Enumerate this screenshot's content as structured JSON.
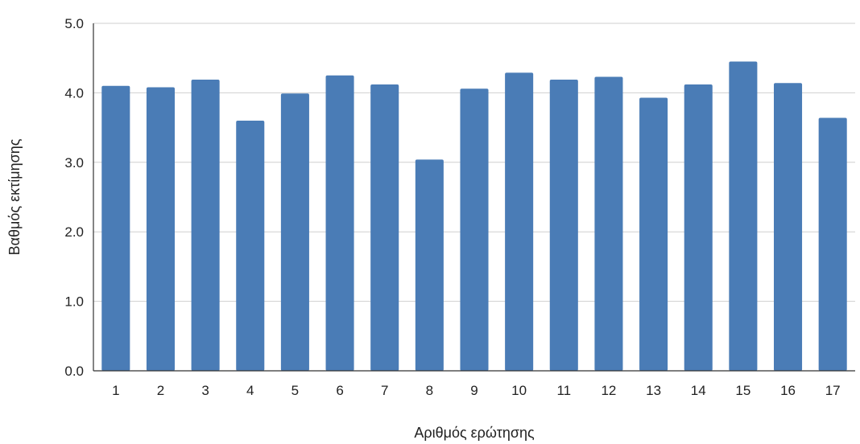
{
  "chart_data": {
    "type": "bar",
    "title": "",
    "xlabel": "Αριθμός ερώτησης",
    "ylabel": "Βαθμός εκτίμησης",
    "categories": [
      "1",
      "2",
      "3",
      "4",
      "5",
      "6",
      "7",
      "8",
      "9",
      "10",
      "11",
      "12",
      "13",
      "14",
      "15",
      "16",
      "17"
    ],
    "values": [
      4.1,
      4.08,
      4.19,
      3.6,
      3.99,
      4.25,
      4.12,
      3.04,
      4.06,
      4.29,
      4.19,
      4.23,
      3.93,
      4.12,
      4.45,
      4.14,
      3.64
    ],
    "ylim": [
      0,
      5
    ],
    "yticks": [
      0,
      1,
      2,
      3,
      4,
      5
    ],
    "ytick_labels": [
      "0.0",
      "1.0",
      "2.0",
      "3.0",
      "4.0",
      "5.0"
    ],
    "grid": true,
    "bar_color": "#4a7cb6",
    "legend": "none"
  }
}
